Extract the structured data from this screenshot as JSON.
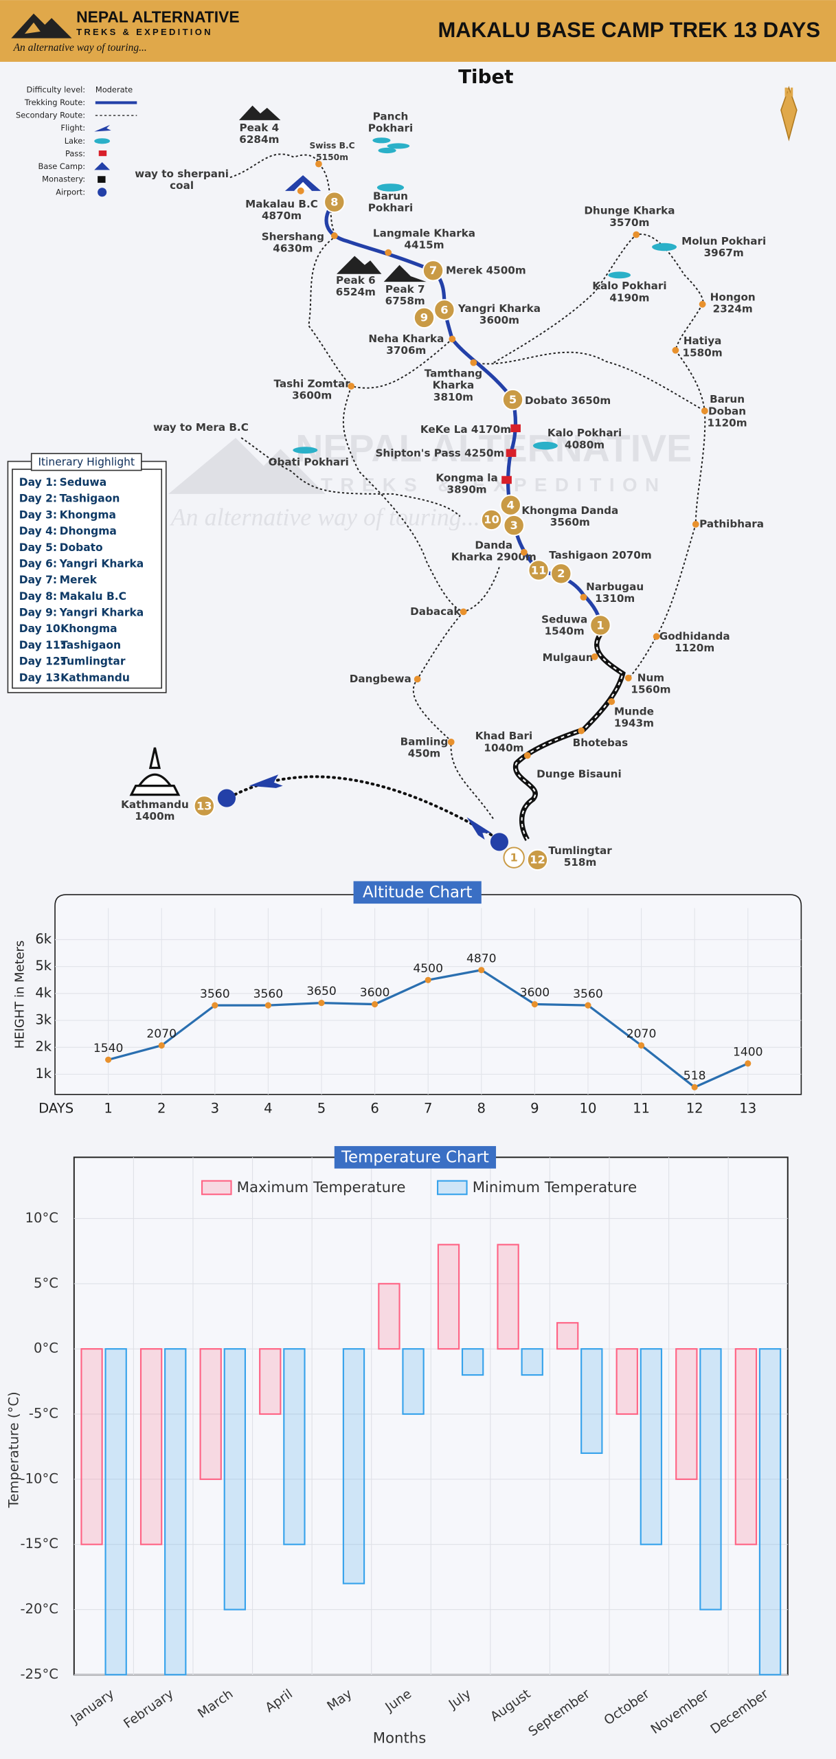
{
  "header": {
    "logo_title": "NEPAL ALTERNATIVE",
    "logo_sub": "TREKS & EXPEDITION",
    "tagline": "An alternative way of touring...",
    "title": "MAKALU BASE CAMP TREK  13 DAYS"
  },
  "map": {
    "region": "Tibet",
    "legend": [
      {
        "label": "Difficulty level:",
        "value": "Moderate"
      },
      {
        "label": "Trekking Route:"
      },
      {
        "label": "Secondary Route:"
      },
      {
        "label": "Flight:"
      },
      {
        "label": "Lake:"
      },
      {
        "label": "Pass:"
      },
      {
        "label": "Base Camp:"
      },
      {
        "label": "Monastery:"
      },
      {
        "label": "Airport:"
      }
    ],
    "places": [
      {
        "lines": [
          "Peak 4",
          "6284m"
        ]
      },
      {
        "lines": [
          "Swiss B.C",
          "5150m"
        ]
      },
      {
        "lines": [
          "Panch",
          "Pokhari"
        ]
      },
      {
        "lines": [
          "way to sherpani",
          "coal"
        ]
      },
      {
        "lines": [
          "Makalau B.C",
          "4870m"
        ]
      },
      {
        "lines": [
          "Barun",
          "Pokhari"
        ]
      },
      {
        "lines": [
          "Shershang",
          "4630m"
        ]
      },
      {
        "lines": [
          "Langmale Kharka",
          "4415m"
        ]
      },
      {
        "lines": [
          "Merek 4500m"
        ]
      },
      {
        "lines": [
          "Peak 6",
          "6524m"
        ]
      },
      {
        "lines": [
          "Peak 7",
          "6758m"
        ]
      },
      {
        "lines": [
          "Yangri Kharka",
          "3600m"
        ]
      },
      {
        "lines": [
          "Neha Kharka",
          "3706m"
        ]
      },
      {
        "lines": [
          "Tamthang",
          "Kharka",
          "3810m"
        ]
      },
      {
        "lines": [
          "Tashi Zomtar",
          "3600m"
        ]
      },
      {
        "lines": [
          "Dobato 3650m"
        ]
      },
      {
        "lines": [
          "Dhunge Kharka",
          "3570m"
        ]
      },
      {
        "lines": [
          "Molun Pokhari",
          "3967m"
        ]
      },
      {
        "lines": [
          "Kalo Pokhari",
          "4190m"
        ]
      },
      {
        "lines": [
          "Hongon",
          "2324m"
        ]
      },
      {
        "lines": [
          "Hatiya",
          "1580m"
        ]
      },
      {
        "lines": [
          "Barun",
          "Doban",
          "1120m"
        ]
      },
      {
        "lines": [
          "way to Mera B.C"
        ]
      },
      {
        "lines": [
          "KeKe La 4170m"
        ]
      },
      {
        "lines": [
          "Kalo Pokhari",
          "4080m"
        ]
      },
      {
        "lines": [
          "Shipton's Pass 4250m"
        ]
      },
      {
        "lines": [
          "Obati Pokhari"
        ]
      },
      {
        "lines": [
          "Kongma la",
          "3890m"
        ]
      },
      {
        "lines": [
          "Khongma Danda",
          "3560m"
        ]
      },
      {
        "lines": [
          "Pathibhara"
        ]
      },
      {
        "lines": [
          "Danda",
          "Kharka 2900m"
        ]
      },
      {
        "lines": [
          "Tashigaon 2070m"
        ]
      },
      {
        "lines": [
          "Narbugau",
          "1310m"
        ]
      },
      {
        "lines": [
          "Dabacak"
        ]
      },
      {
        "lines": [
          "Seduwa",
          "1540m"
        ]
      },
      {
        "lines": [
          "Godhidanda",
          "1120m"
        ]
      },
      {
        "lines": [
          "Mulgaun"
        ]
      },
      {
        "lines": [
          "Dangbewa"
        ]
      },
      {
        "lines": [
          "Num",
          "1560m"
        ]
      },
      {
        "lines": [
          "Munde",
          "1943m"
        ]
      },
      {
        "lines": [
          "Khad Bari",
          "1040m"
        ]
      },
      {
        "lines": [
          "Bhotebas"
        ]
      },
      {
        "lines": [
          "Bamling",
          "450m"
        ]
      },
      {
        "lines": [
          "Dunge Bisauni"
        ]
      },
      {
        "lines": [
          "Kathmandu",
          "1400m"
        ]
      },
      {
        "lines": [
          "Tumlingtar",
          "518m"
        ]
      }
    ],
    "day_markers": [
      "8",
      "7",
      "6",
      "9",
      "5",
      "4",
      "10",
      "3",
      "11",
      "2",
      "1",
      "13",
      "12",
      "1"
    ]
  },
  "itinerary": {
    "title": "Itinerary Highlight",
    "days": [
      [
        "Day 1:",
        "Seduwa"
      ],
      [
        "Day 2:",
        "Tashigaon"
      ],
      [
        "Day 3:",
        "Khongma"
      ],
      [
        "Day 4:",
        "Dhongma"
      ],
      [
        "Day 5:",
        "Dobato"
      ],
      [
        "Day 6:",
        "Yangri Kharka"
      ],
      [
        "Day 7:",
        "Merek"
      ],
      [
        "Day 8:",
        "Makalu B.C"
      ],
      [
        "Day 9:",
        "Yangri Kharka"
      ],
      [
        "Day 10:",
        "Khongma"
      ],
      [
        "Day 11:",
        "Tashigaon"
      ],
      [
        "Day 12:",
        "Tumlingtar"
      ],
      [
        "Day 13:",
        "Kathmandu"
      ]
    ]
  },
  "chart_data": [
    {
      "type": "line",
      "title": "Altitude Chart",
      "y_label": "HEIGHT in Meters",
      "x_label": "DAYS",
      "x": [
        1,
        2,
        3,
        4,
        5,
        6,
        7,
        8,
        9,
        10,
        11,
        12,
        13
      ],
      "values": [
        1540,
        2070,
        3560,
        3560,
        3650,
        3600,
        4500,
        4870,
        3600,
        3560,
        2070,
        518,
        1400
      ],
      "color": "#2a6fb0",
      "marker_color": "#e8912d",
      "xlim": [
        0,
        14
      ],
      "xticks": [
        1,
        2,
        3,
        4,
        5,
        6,
        7,
        8,
        9,
        10,
        11,
        12,
        13
      ],
      "ylim": [
        250,
        7670
      ],
      "yticks": [
        {
          "value": 1000,
          "label": "1k"
        },
        {
          "value": 2000,
          "label": "2k"
        },
        {
          "value": 3000,
          "label": "3k"
        },
        {
          "value": 4000,
          "label": "4k"
        },
        {
          "value": 5000,
          "label": "5k"
        },
        {
          "value": 6000,
          "label": "6k"
        }
      ],
      "grid": true
    },
    {
      "type": "bar",
      "title": "Temperature Chart",
      "y_label": "Temperature (°C)",
      "x_label": "Months",
      "categories": [
        "January",
        "February",
        "March",
        "April",
        "May",
        "June",
        "July",
        "August",
        "September",
        "October",
        "November",
        "December"
      ],
      "series": [
        {
          "name": "Maximum Temperature",
          "color": "#ff6384",
          "values": [
            -15,
            -15,
            -10,
            -5,
            0,
            5,
            8,
            8,
            2,
            -5,
            -10,
            -15
          ]
        },
        {
          "name": "Minimum Temperature",
          "color": "#36a2eb",
          "values": [
            -25,
            -25,
            -20,
            -15,
            -18,
            -5,
            -2,
            -2,
            -8,
            -15,
            -20,
            -25
          ]
        }
      ],
      "ylim": [
        -25,
        14.7
      ],
      "yticks": [
        {
          "value": -25,
          "label": "-25°C"
        },
        {
          "value": -20,
          "label": "-20°C"
        },
        {
          "value": -15,
          "label": "-15°C"
        },
        {
          "value": -10,
          "label": "-10°C"
        },
        {
          "value": -5,
          "label": "-5°C"
        },
        {
          "value": 0,
          "label": "0°C"
        },
        {
          "value": 5,
          "label": "5°C"
        },
        {
          "value": 10,
          "label": "10°C"
        }
      ],
      "grid": true,
      "legend": "top"
    }
  ]
}
